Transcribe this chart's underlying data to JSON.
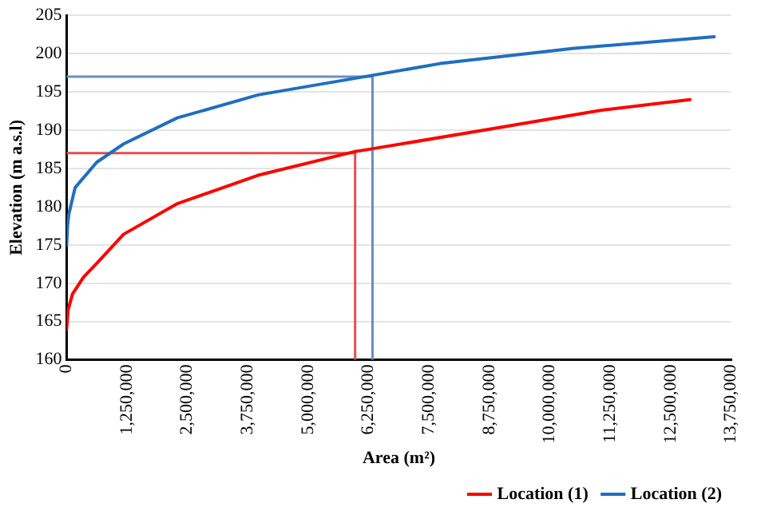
{
  "chart_data": {
    "type": "line",
    "xlabel": "Area (m²)",
    "ylabel": "Elevation (m a.s.l)",
    "xlim": [
      0,
      13750000
    ],
    "ylim": [
      160,
      205
    ],
    "xticks": [
      {
        "value": 0,
        "label": "0"
      },
      {
        "value": 1250000,
        "label": "1,250,000"
      },
      {
        "value": 2500000,
        "label": "2,500,000"
      },
      {
        "value": 3750000,
        "label": "3,750,000"
      },
      {
        "value": 5000000,
        "label": "5,000,000"
      },
      {
        "value": 6250000,
        "label": "6,250,000"
      },
      {
        "value": 7500000,
        "label": "7,500,000"
      },
      {
        "value": 8750000,
        "label": "8,750,000"
      },
      {
        "value": 10000000,
        "label": "10,000,000"
      },
      {
        "value": 11250000,
        "label": "11,250,000"
      },
      {
        "value": 12500000,
        "label": "12,500,000"
      },
      {
        "value": 13750000,
        "label": "13,750,000"
      }
    ],
    "yticks": [
      160,
      165,
      170,
      175,
      180,
      185,
      190,
      195,
      200,
      205
    ],
    "grid": "y",
    "legend": "bottom right",
    "marker": "none",
    "line_style": "solid",
    "series": [
      {
        "name": "Location (1)",
        "color": "#ff0000",
        "x": [
          0,
          30000,
          123000,
          350000,
          623000,
          1180000,
          2290000,
          3960000,
          5960000,
          6070000,
          8830000,
          11070000,
          12900000
        ],
        "values": [
          164,
          166.5,
          168.6,
          170.8,
          172.6,
          176.4,
          180.4,
          184.1,
          187.2,
          187.3,
          190.2,
          192.6,
          194
        ]
      },
      {
        "name": "Location (2)",
        "color": "#1f6fc0",
        "x": [
          0,
          20000,
          45000,
          177000,
          623000,
          1180000,
          2290000,
          3960000,
          6180000,
          7730000,
          10500000,
          13400000
        ],
        "values": [
          175,
          177.5,
          179,
          182.5,
          185.8,
          188.2,
          191.6,
          194.6,
          197,
          198.7,
          200.7,
          202.2
        ]
      },
      {
        "type": "line",
        "color": "#e05050",
        "x": [
          0,
          5970000,
          5970000
        ],
        "values": [
          187,
          187,
          160
        ]
      },
      {
        "type": "line",
        "color": "#6a8cc8",
        "x": [
          0,
          6330000,
          6330000
        ],
        "values": [
          197,
          197,
          160
        ]
      }
    ]
  }
}
